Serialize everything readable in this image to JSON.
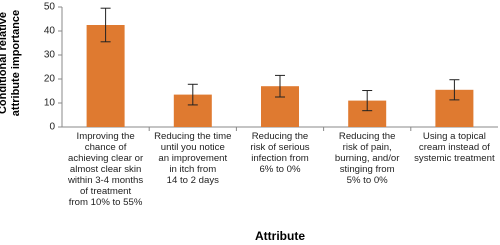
{
  "chart_data": {
    "type": "bar",
    "y_label": "Conditional relative\nattribute importance",
    "x_label": "Attribute",
    "categories": [
      "Improving the\nchance of\nachieving clear or\nalmost clear skin\nwithin 3-4 months\nof treatment\nfrom 10% to 55%",
      "Reducing the time\nuntil you notice\nan improvement\nin itch from\n14 to 2 days",
      "Reducing the\nrisk of serious\ninfection from\n6% to 0%",
      "Reducing the\nrisk of pain,\nburning, and/or\nstinging from\n5% to 0%",
      "Using a topical\ncream instead of\nsystemic treatment"
    ],
    "values": [
      42.5,
      13.5,
      17,
      11,
      15.5
    ],
    "errors": [
      7,
      4.3,
      4.5,
      4.2,
      4.2
    ],
    "color": "#df7a30",
    "ylim": [
      0,
      50
    ],
    "yticks": [
      0,
      10,
      20,
      30,
      40,
      50
    ]
  }
}
